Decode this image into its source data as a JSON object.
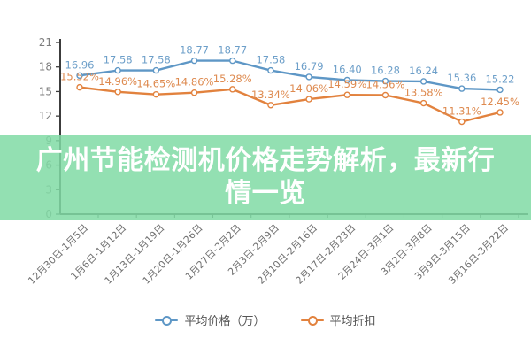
{
  "banner": {
    "title": "广州节能检测机价格走势解析，最新行情一览"
  },
  "chart_data": {
    "type": "line",
    "categories": [
      "12月30日-1月5日",
      "1月6日-1月12日",
      "1月13日-1月19日",
      "1月20日-1月26日",
      "1月27日-2月2日",
      "2月3日-2月9日",
      "2月10日-2月16日",
      "2月17日-2月23日",
      "2月24日-3月1日",
      "3月2日-3月8日",
      "3月9日-3月15日",
      "3月16日-3月22日"
    ],
    "series": [
      {
        "name": "平均价格（万）",
        "color": "#5e97c6",
        "label_color": "#6d9fc9",
        "values": [
          16.96,
          17.58,
          17.58,
          18.77,
          18.77,
          17.58,
          16.79,
          16.4,
          16.28,
          16.24,
          15.36,
          15.22
        ],
        "labels": [
          "16.96",
          "17.58",
          "17.58",
          "18.77",
          "18.77",
          "17.58",
          "16.79",
          "16.40",
          "16.28",
          "16.24",
          "15.36",
          "15.22"
        ]
      },
      {
        "name": "平均折扣",
        "color": "#e2823e",
        "label_color": "#de8a4f",
        "values": [
          15.52,
          14.96,
          14.65,
          14.86,
          15.28,
          13.34,
          14.06,
          14.59,
          14.56,
          13.58,
          11.31,
          12.45
        ],
        "labels": [
          "15.52%",
          "14.96%",
          "14.65%",
          "14.86%",
          "15.28%",
          "13.34%",
          "14.06%",
          "14.59%",
          "14.56%",
          "13.58%",
          "11.31%",
          "12.45%"
        ]
      }
    ],
    "title": "",
    "xlabel": "",
    "ylabel": "",
    "ylim": [
      0,
      21
    ],
    "ytick_step": 3,
    "grid": false,
    "legend_position": "bottom",
    "axis_color": "#3c3c3c",
    "ytick_label_color": "#7d7d7d",
    "xtick_label_color": "#707070"
  }
}
